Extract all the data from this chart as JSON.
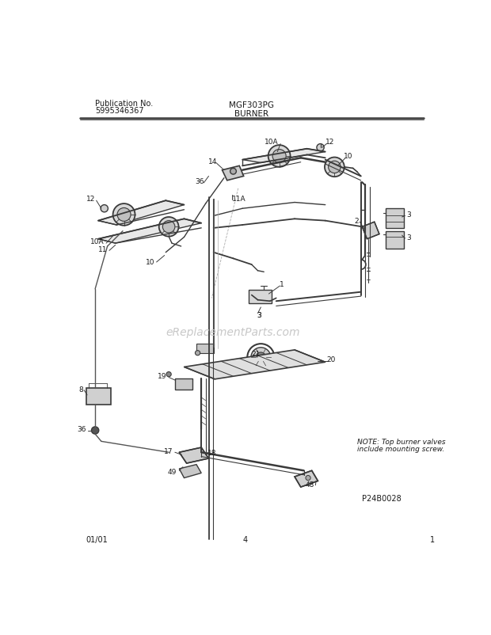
{
  "title_model": "MGF303PG",
  "title_section": "BURNER",
  "pub_no_label": "Publication No.",
  "pub_no": "5995346367",
  "date": "01/01",
  "page": "4",
  "diagram_id": "P24B0028",
  "page_num": "1",
  "note_line1": "NOTE: Top burner valves",
  "note_line2": "include mounting screw.",
  "watermark": "eReplacementParts.com",
  "bg_color": "#ffffff",
  "lc": "#3a3a3a",
  "tc": "#1a1a1a",
  "wc": "#c8c8c8",
  "fig_width": 6.2,
  "fig_height": 8.03,
  "dpi": 100
}
